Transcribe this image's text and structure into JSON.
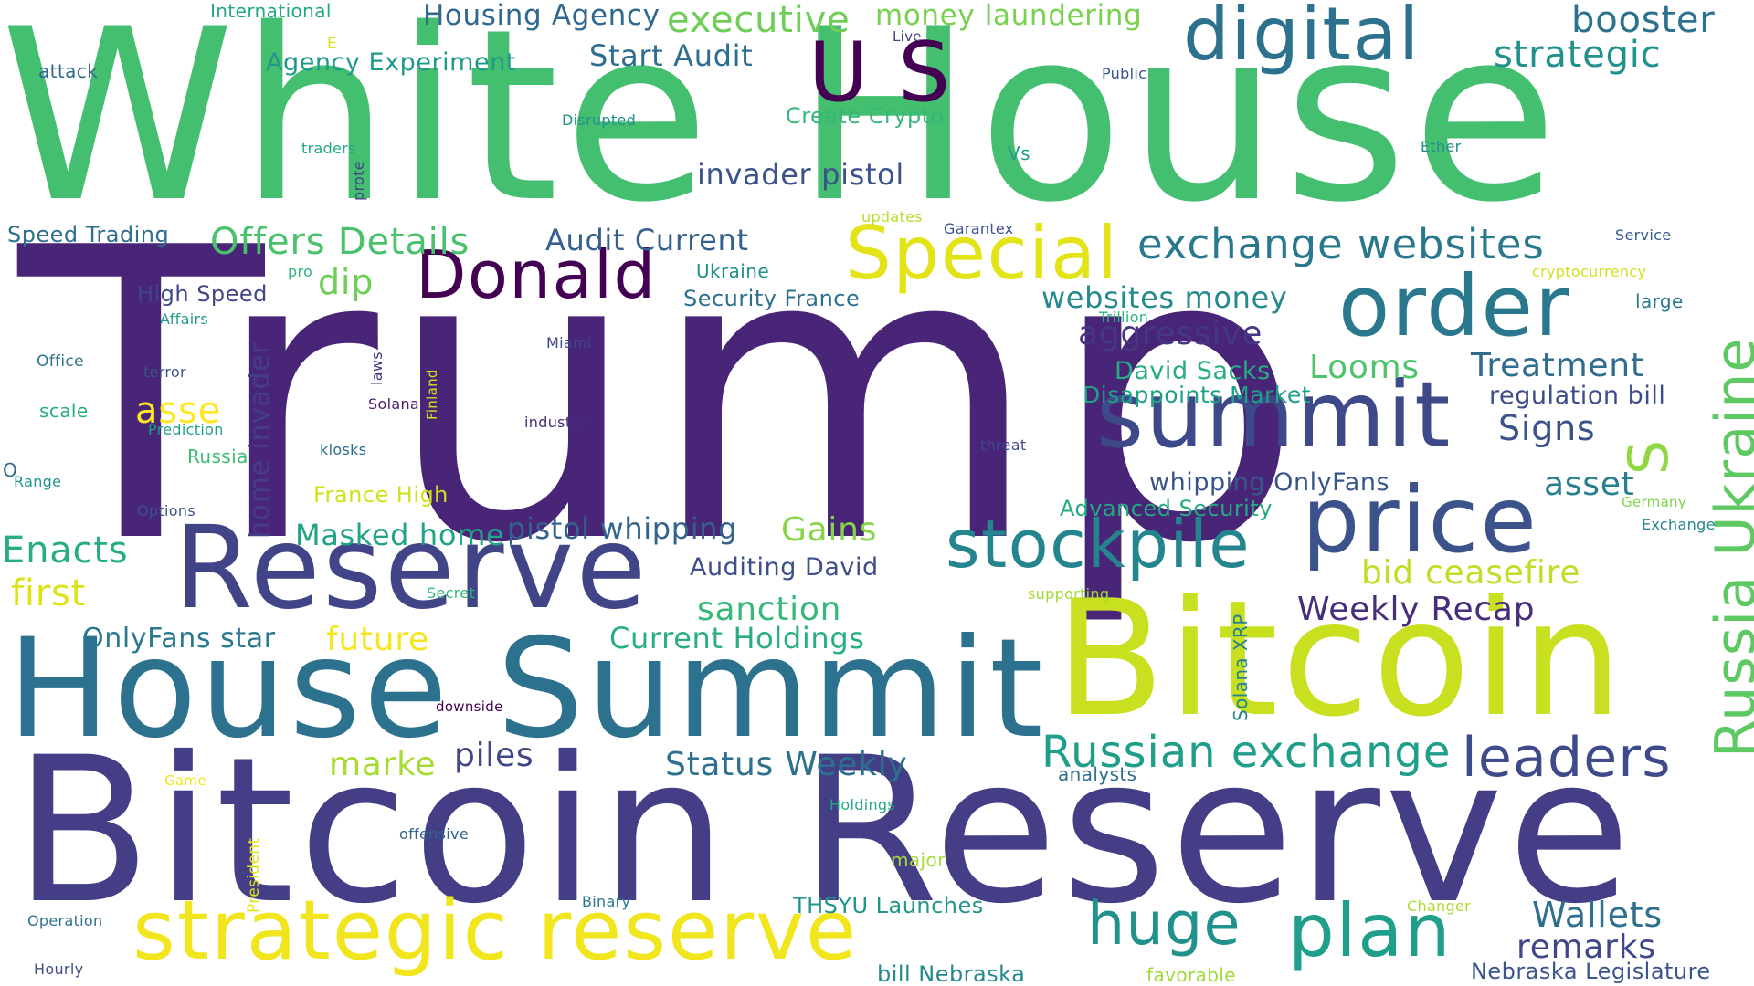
{
  "words": [
    {
      "text": "White House",
      "color": "#44bf70"
    },
    {
      "text": "Trump",
      "color": "#482576"
    },
    {
      "text": "Bitcoin Reserve",
      "color": "#433e85"
    },
    {
      "text": "House Summit",
      "color": "#2c728e"
    },
    {
      "text": "Bitcoin",
      "color": "#c8e020"
    },
    {
      "text": "Reserve",
      "color": "#414487"
    },
    {
      "text": "strategic reserve",
      "color": "#f1e51d"
    },
    {
      "text": "U S",
      "color": "#440154"
    },
    {
      "text": "digital",
      "color": "#2c728e"
    },
    {
      "text": "Donald",
      "color": "#440154"
    },
    {
      "text": "Special",
      "color": "#e2e418"
    },
    {
      "text": "order",
      "color": "#2a788e"
    },
    {
      "text": "summit",
      "color": "#3e4989"
    },
    {
      "text": "price",
      "color": "#3b528b"
    },
    {
      "text": "stockpile",
      "color": "#25858e"
    },
    {
      "text": "plan",
      "color": "#1f9e89"
    },
    {
      "text": "huge",
      "color": "#21918c"
    },
    {
      "text": "leaders",
      "color": "#3e4a89"
    },
    {
      "text": "Russia Ukraine",
      "color": "#5ec962"
    },
    {
      "text": "S",
      "color": "#90d743"
    },
    {
      "text": "Russian exchange",
      "color": "#1f9e89"
    },
    {
      "text": "exchange websites",
      "color": "#2a788e"
    },
    {
      "text": "booster",
      "color": "#2c728e"
    },
    {
      "text": "strategic",
      "color": "#21918c"
    },
    {
      "text": "executive",
      "color": "#6ece58"
    },
    {
      "text": "Housing Agency",
      "color": "#31688e"
    },
    {
      "text": "money laundering",
      "color": "#7ad151"
    },
    {
      "text": "Start Audit",
      "color": "#2e6e8e"
    },
    {
      "text": "Agency Experiment",
      "color": "#1f9a8a"
    },
    {
      "text": "Create Crypto",
      "color": "#35b779"
    },
    {
      "text": "invader pistol",
      "color": "#3b528b"
    },
    {
      "text": "Offers Details",
      "color": "#4ac16d"
    },
    {
      "text": "Audit Current",
      "color": "#355f8d"
    },
    {
      "text": "Speed Trading",
      "color": "#2d708e"
    },
    {
      "text": "dip",
      "color": "#6ece58"
    },
    {
      "text": "High Speed",
      "color": "#404688"
    },
    {
      "text": "home invader",
      "color": "#433e85"
    },
    {
      "text": "asse",
      "color": "#fde725"
    },
    {
      "text": "Enacts",
      "color": "#27ad81"
    },
    {
      "text": "first",
      "color": "#dde318"
    },
    {
      "text": "Masked home",
      "color": "#20a386"
    },
    {
      "text": "pistol whipping",
      "color": "#33638d"
    },
    {
      "text": "Gains",
      "color": "#86d549"
    },
    {
      "text": "Auditing David",
      "color": "#3d4e8a"
    },
    {
      "text": "sanction",
      "color": "#37b878"
    },
    {
      "text": "Current Holdings",
      "color": "#29af7f"
    },
    {
      "text": "OnlyFans star",
      "color": "#29798e"
    },
    {
      "text": "future",
      "color": "#f6e620"
    },
    {
      "text": "marke",
      "color": "#a8db34"
    },
    {
      "text": "piles",
      "color": "#3f4788"
    },
    {
      "text": "Status Weekly",
      "color": "#2d708e"
    },
    {
      "text": "websites money",
      "color": "#238a8d"
    },
    {
      "text": "aggressive",
      "color": "#453781"
    },
    {
      "text": "Looms",
      "color": "#4ec36b"
    },
    {
      "text": "Treatment",
      "color": "#2f6c8e"
    },
    {
      "text": "David Sacks",
      "color": "#27ad81"
    },
    {
      "text": "Disappoints Market",
      "color": "#1fa188"
    },
    {
      "text": "regulation bill",
      "color": "#3e4c8a"
    },
    {
      "text": "Signs",
      "color": "#3b528b"
    },
    {
      "text": "asset",
      "color": "#277f8e"
    },
    {
      "text": "whipping OnlyFans",
      "color": "#39568c"
    },
    {
      "text": "Advanced Security",
      "color": "#24aa83"
    },
    {
      "text": "bid ceasefire",
      "color": "#bddf26"
    },
    {
      "text": "Weekly Recap",
      "color": "#472d7b"
    },
    {
      "text": "Wallets",
      "color": "#2e6f8e"
    },
    {
      "text": "remarks",
      "color": "#3f4788"
    },
    {
      "text": "Nebraska Legislature",
      "color": "#3a548c"
    },
    {
      "text": "THSYU Launches",
      "color": "#1f958b"
    },
    {
      "text": "bill Nebraska",
      "color": "#23898e"
    },
    {
      "text": "favorable",
      "color": "#a0da39"
    },
    {
      "text": "International",
      "color": "#22a884"
    },
    {
      "text": "attack",
      "color": "#31688e"
    },
    {
      "text": "E",
      "color": "#d8e219"
    },
    {
      "text": "Live",
      "color": "#404688"
    },
    {
      "text": "Public",
      "color": "#39558c"
    },
    {
      "text": "Disrupted",
      "color": "#21918c"
    },
    {
      "text": "traders",
      "color": "#22a785"
    },
    {
      "text": "prote",
      "color": "#404588"
    },
    {
      "text": "Vs",
      "color": "#1f9e89"
    },
    {
      "text": "Ether",
      "color": "#218f8d"
    },
    {
      "text": "updates",
      "color": "#b5de2b"
    },
    {
      "text": "Garantex",
      "color": "#3b528b"
    },
    {
      "text": "Service",
      "color": "#375a8c"
    },
    {
      "text": "cryptocurrency",
      "color": "#d0e11c"
    },
    {
      "text": "Ukraine",
      "color": "#21918c"
    },
    {
      "text": "pro",
      "color": "#31b57b"
    },
    {
      "text": "Security France",
      "color": "#2d708e"
    },
    {
      "text": "Trillion",
      "color": "#2fb47c"
    },
    {
      "text": "large",
      "color": "#2a788e"
    },
    {
      "text": "Affairs",
      "color": "#1e9c89"
    },
    {
      "text": "Office",
      "color": "#2c738e"
    },
    {
      "text": "terror",
      "color": "#39558c"
    },
    {
      "text": "laws",
      "color": "#46327e"
    },
    {
      "text": "Miami",
      "color": "#3e4989"
    },
    {
      "text": "Finland",
      "color": "#d2e21b"
    },
    {
      "text": "Solana",
      "color": "#481a6c"
    },
    {
      "text": "industry",
      "color": "#472c7a"
    },
    {
      "text": "scale",
      "color": "#29af7f"
    },
    {
      "text": "Prediction",
      "color": "#1fa088"
    },
    {
      "text": "Russia",
      "color": "#3bbb75"
    },
    {
      "text": "kiosks",
      "color": "#2f6b8e"
    },
    {
      "text": "threat",
      "color": "#3e4a89"
    },
    {
      "text": "O",
      "color": "#31688e"
    },
    {
      "text": "Range",
      "color": "#1f968b"
    },
    {
      "text": "Options",
      "color": "#3b528b"
    },
    {
      "text": "France High",
      "color": "#d0e11c"
    },
    {
      "text": "Germany",
      "color": "#7fd34e"
    },
    {
      "text": "Exchange",
      "color": "#24868e"
    },
    {
      "text": "Secret",
      "color": "#32b67a"
    },
    {
      "text": "supporting",
      "color": "#a2da37"
    },
    {
      "text": "Solana XRP",
      "color": "#25838e"
    },
    {
      "text": "downside",
      "color": "#440154"
    },
    {
      "text": "analysts",
      "color": "#2e6e8e"
    },
    {
      "text": "Game",
      "color": "#f1e51d"
    },
    {
      "text": "Holdings",
      "color": "#22a884"
    },
    {
      "text": "President",
      "color": "#e5e419"
    },
    {
      "text": "offensive",
      "color": "#33638d"
    },
    {
      "text": "major",
      "color": "#a5db36"
    },
    {
      "text": "Binary",
      "color": "#2a788e"
    },
    {
      "text": "Changer",
      "color": "#addc30"
    },
    {
      "text": "Operation",
      "color": "#2c728e"
    },
    {
      "text": "Hourly",
      "color": "#3d4e8a"
    }
  ]
}
